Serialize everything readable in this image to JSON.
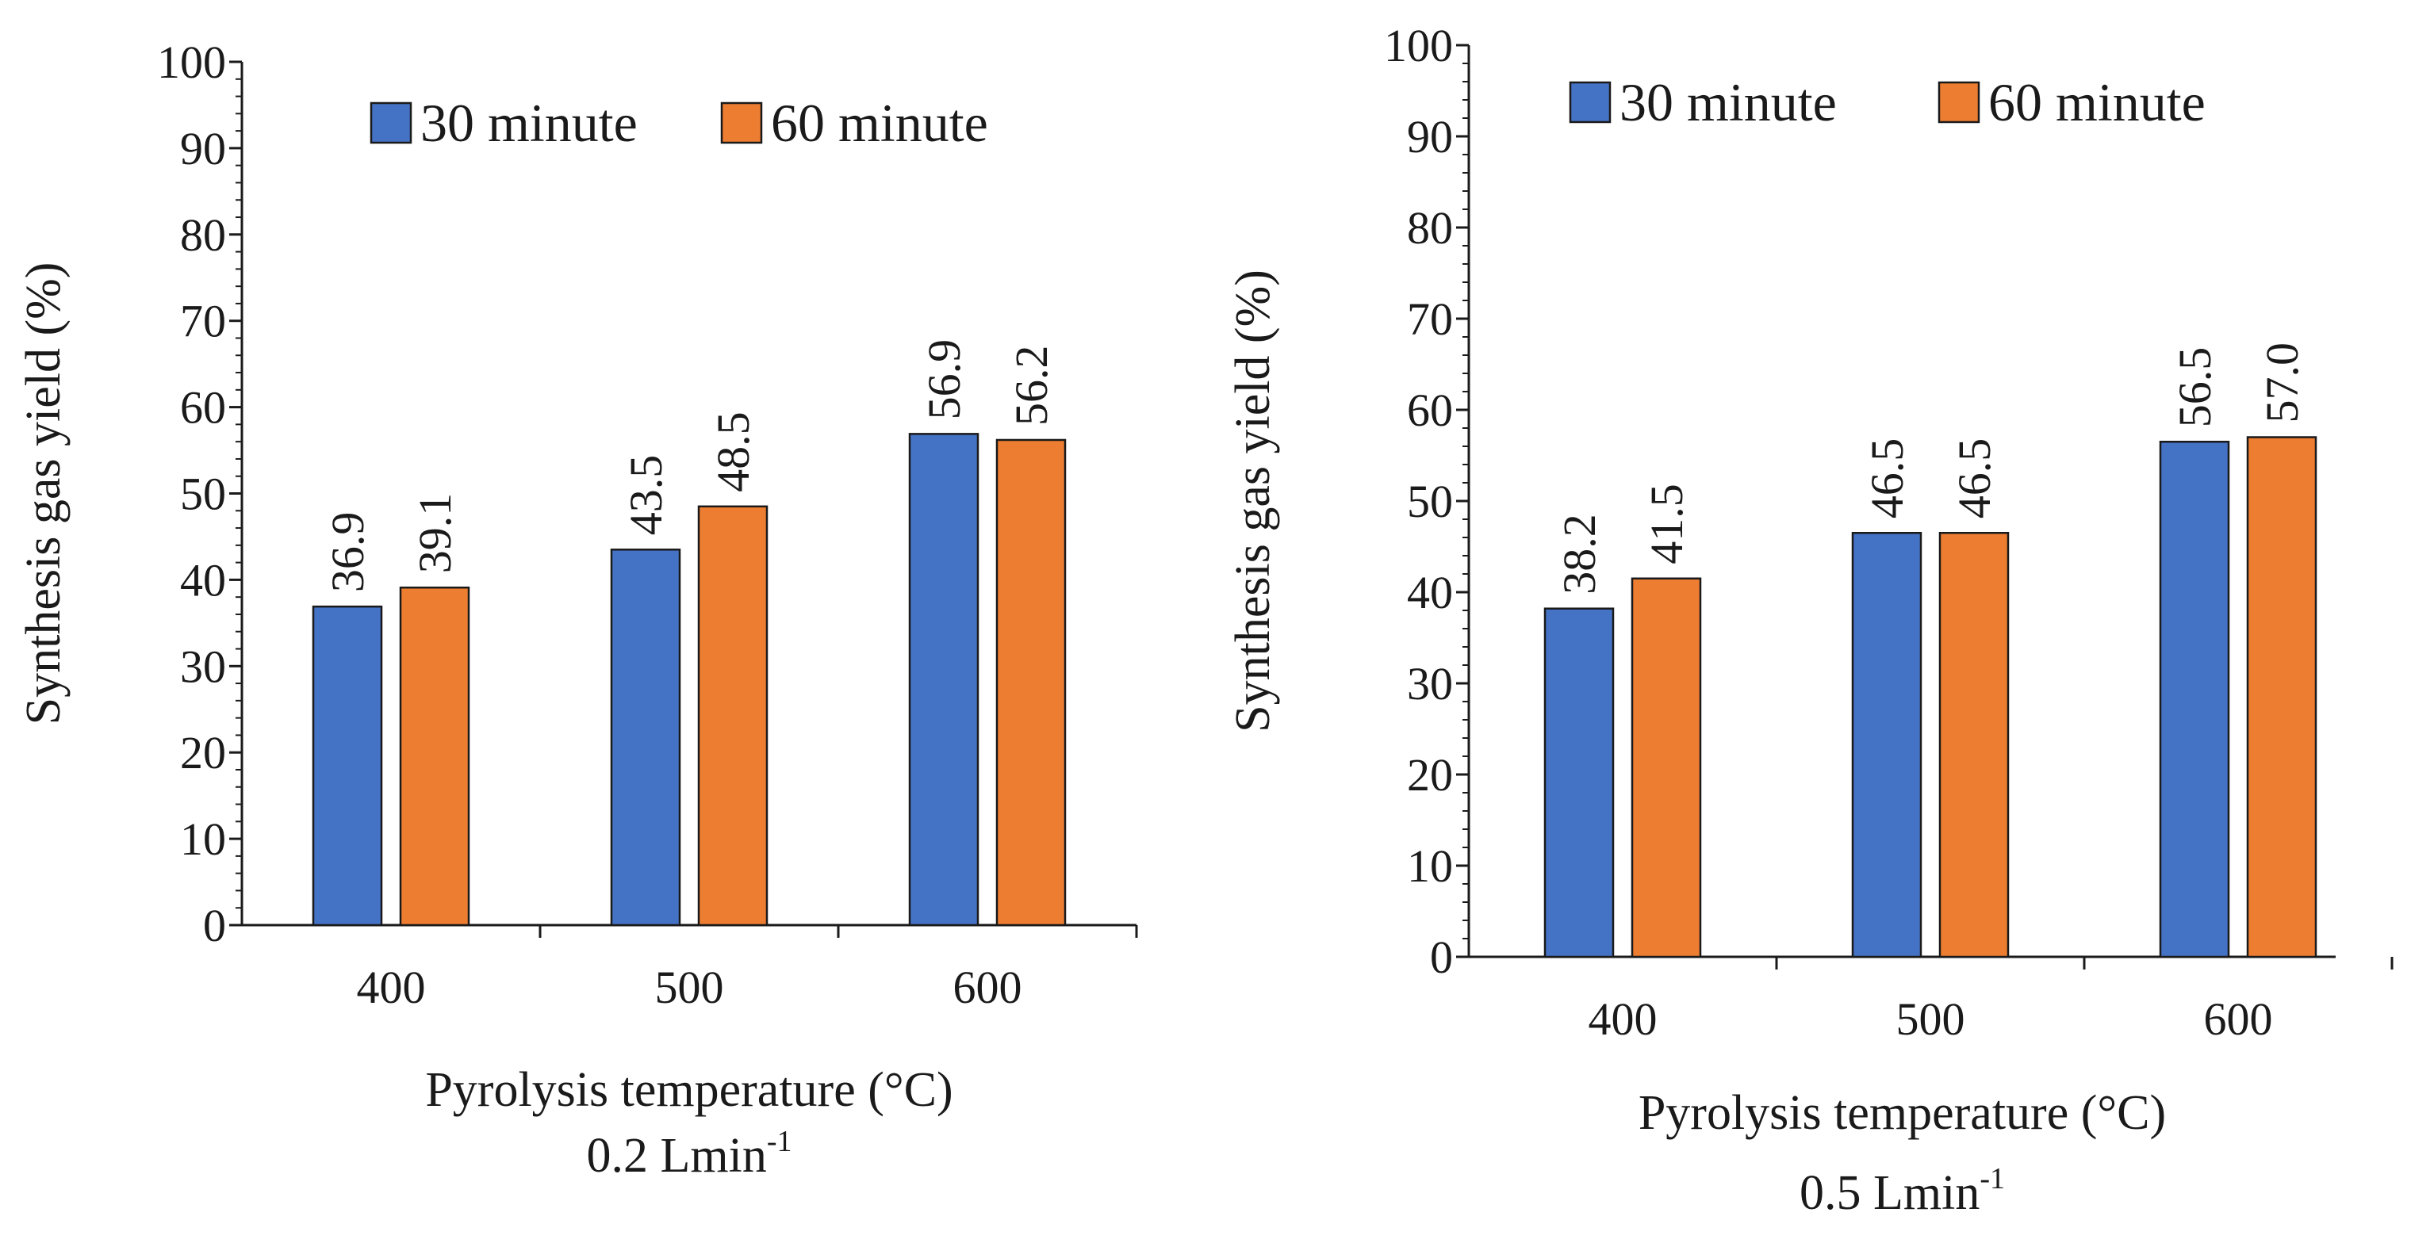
{
  "chart_data": [
    {
      "type": "bar",
      "categories": [
        "400",
        "500",
        "600"
      ],
      "series": [
        {
          "name": "30 minute",
          "color": "#4472C4",
          "values": [
            36.9,
            43.5,
            56.9
          ],
          "labels": [
            "36.9",
            "43.5",
            "56.9"
          ]
        },
        {
          "name": "60 minute",
          "color": "#ED7D31",
          "values": [
            39.1,
            48.5,
            56.2
          ],
          "labels": [
            "39.1",
            "48.5",
            "56.2"
          ]
        }
      ],
      "ylabel": "Synthesis gas yield (%)",
      "xlabel": "Pyrolysis temperature (°C)",
      "subtitle_main": "0.2 Lmin",
      "subtitle_sup": "-1",
      "ylim": [
        0,
        100
      ],
      "yticks": [
        "0",
        "10",
        "20",
        "30",
        "40",
        "50",
        "60",
        "70",
        "80",
        "90",
        "100"
      ],
      "legend_position": "top-right"
    },
    {
      "type": "bar",
      "categories": [
        "400",
        "500",
        "600"
      ],
      "series": [
        {
          "name": "30 minute",
          "color": "#4472C4",
          "values": [
            38.2,
            46.5,
            56.5
          ],
          "labels": [
            "38.2",
            "46.5",
            "56.5"
          ]
        },
        {
          "name": "60 minute",
          "color": "#ED7D31",
          "values": [
            41.5,
            46.5,
            57.0
          ],
          "labels": [
            "41.5",
            "46.5",
            "57.0"
          ]
        }
      ],
      "ylabel": "Synthesis gas yield (%)",
      "xlabel": "Pyrolysis temperature (°C)",
      "subtitle_main": "0.5 Lmin",
      "subtitle_sup": "-1",
      "ylim": [
        0,
        100
      ],
      "yticks": [
        "0",
        "10",
        "20",
        "30",
        "40",
        "50",
        "60",
        "70",
        "80",
        "90",
        "100"
      ],
      "legend_position": "top-right"
    }
  ]
}
